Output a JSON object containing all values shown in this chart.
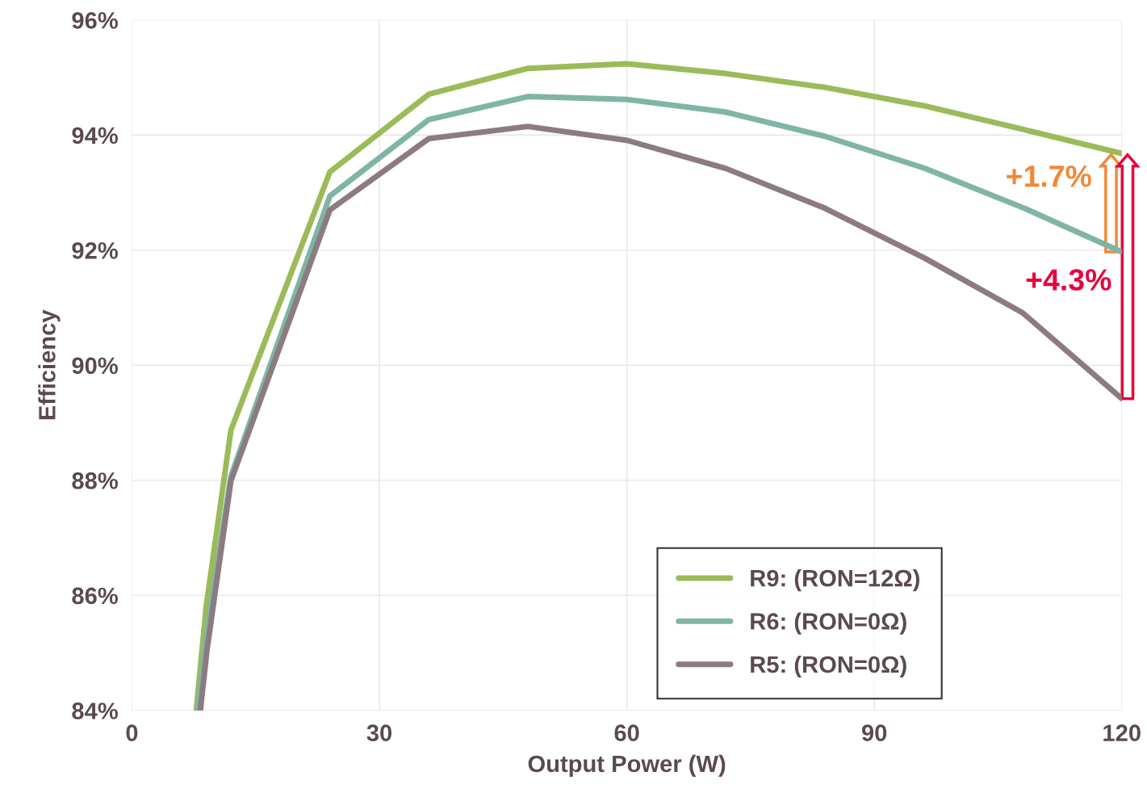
{
  "chart_data": {
    "type": "line",
    "xlabel": "Output Power (W)",
    "ylabel": "Efficiency",
    "xlim": [
      0,
      120
    ],
    "xticks": [
      0,
      30,
      60,
      90,
      120
    ],
    "ylim": [
      84,
      96
    ],
    "yticks": [
      {
        "value": 84,
        "label": "84%"
      },
      {
        "value": 86,
        "label": "86%"
      },
      {
        "value": 88,
        "label": "88%"
      },
      {
        "value": 90,
        "label": "90%"
      },
      {
        "value": 92,
        "label": "92%"
      },
      {
        "value": 94,
        "label": "94%"
      },
      {
        "value": 96,
        "label": "96%"
      }
    ],
    "grid": true,
    "legend": "bottom right",
    "marker": "none",
    "line_style": "solid",
    "series": [
      {
        "name": "R9: (RON=12Ω)",
        "color": "#9bbb59",
        "x": [
          7.8,
          9,
          12,
          24,
          36,
          48,
          60,
          72,
          84,
          96,
          108,
          120
        ],
        "values": [
          84.0,
          85.8,
          88.87,
          93.36,
          94.71,
          95.16,
          95.24,
          95.07,
          94.83,
          94.51,
          94.1,
          93.68
        ]
      },
      {
        "name": "R6: (RON=0Ω)",
        "color": "#7fb5a5",
        "x": [
          8.0,
          9,
          12,
          24,
          36,
          48,
          60,
          72,
          84,
          96,
          108,
          120
        ],
        "values": [
          84.0,
          85.26,
          88.07,
          92.94,
          94.27,
          94.67,
          94.62,
          94.4,
          93.98,
          93.43,
          92.74,
          91.97
        ]
      },
      {
        "name": "R5: (RON=0Ω)",
        "color": "#8c7b80",
        "x": [
          8.3,
          9.1,
          12,
          24,
          36,
          48,
          60,
          72,
          84,
          96,
          108,
          120
        ],
        "values": [
          84.0,
          85.05,
          87.99,
          92.7,
          93.94,
          94.15,
          93.91,
          93.42,
          92.73,
          91.87,
          90.91,
          89.42
        ]
      }
    ],
    "annotations": [
      "+1.7%",
      "+4.3%"
    ]
  }
}
